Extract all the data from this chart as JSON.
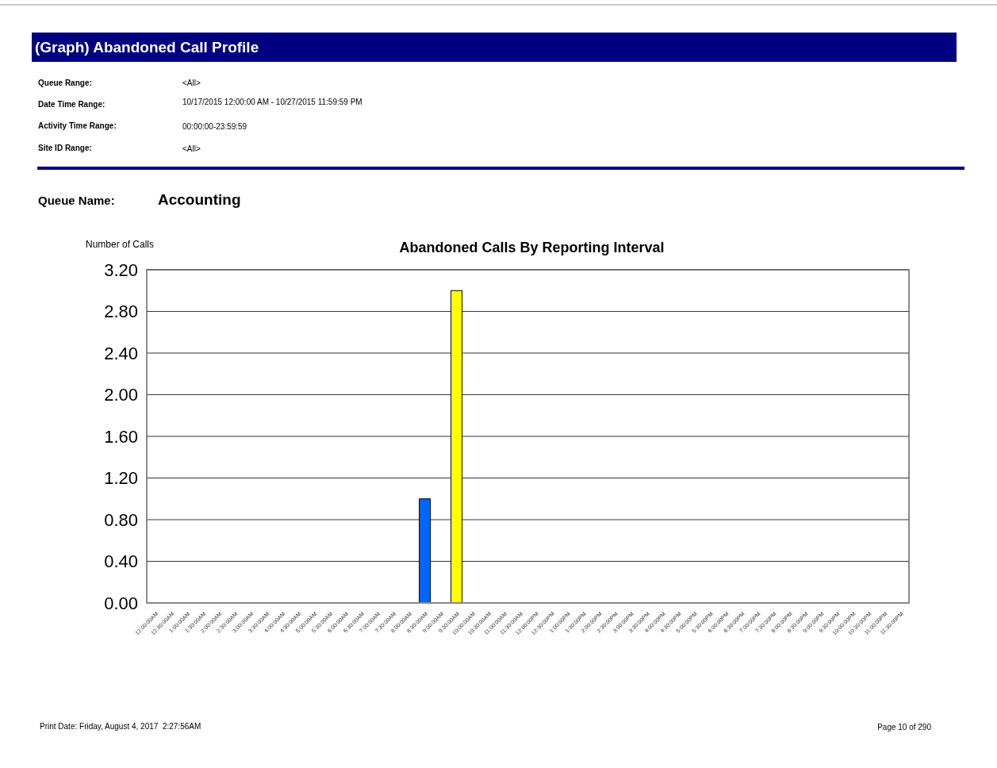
{
  "chart_data": {
    "type": "bar",
    "title": "(Graph) Abandoned Call Profile",
    "subtitle": "Abandoned Calls By Reporting Interval",
    "ylabel": "Number of Calls",
    "annotations": [
      "Queue Range:",
      "<All>",
      "Date Time Range:",
      "10/17/2015 12:00:00 AM - 10/27/2015 11:59:59 PM",
      "Activity Time Range:",
      "00:00:00-23:59:59",
      "Site ID Range:",
      "<All>",
      "Queue Name:",
      "Accounting",
      "Print Date: Friday, August 4, 2017  2:27:56AM",
      "Page 10 of 290"
    ],
    "categories": [
      "12:00:00AM",
      "12:30:00AM",
      "1:00:00AM",
      "1:30:00AM",
      "2:00:00AM",
      "2:30:00AM",
      "3:00:00AM",
      "3:30:00AM",
      "4:00:00AM",
      "4:30:00AM",
      "5:00:00AM",
      "5:30:00AM",
      "6:00:00AM",
      "6:30:00AM",
      "7:00:00AM",
      "7:30:00AM",
      "8:00:00AM",
      "8:30:00AM",
      "9:00:00AM",
      "9:30:00AM",
      "10:00:00AM",
      "10:30:00AM",
      "11:00:00AM",
      "11:30:00AM",
      "12:00:00PM",
      "12:30:00PM",
      "1:00:00PM",
      "1:30:00PM",
      "2:00:00PM",
      "2:30:00PM",
      "3:00:00PM",
      "3:30:00PM",
      "4:00:00PM",
      "4:30:00PM",
      "5:00:00PM",
      "5:30:00PM",
      "6:00:00PM",
      "6:30:00PM",
      "7:00:00PM",
      "7:30:00PM",
      "8:00:00PM",
      "8:30:00PM",
      "9:00:00PM",
      "9:30:00PM",
      "10:00:00PM",
      "10:30:00PM",
      "11:00:00PM",
      "11:30:00PM"
    ],
    "values": [
      0,
      0,
      0,
      0,
      0,
      0,
      0,
      0,
      0,
      0,
      0,
      0,
      0,
      0,
      0,
      0,
      0,
      1,
      0,
      3,
      0,
      0,
      0,
      0,
      0,
      0,
      0,
      0,
      0,
      0,
      0,
      0,
      0,
      0,
      0,
      0,
      0,
      0,
      0,
      0,
      0,
      0,
      0,
      0,
      0,
      0,
      0,
      0
    ],
    "colors": [
      "#0066ff",
      "#0066ff",
      "#0066ff",
      "#0066ff",
      "#0066ff",
      "#0066ff",
      "#0066ff",
      "#0066ff",
      "#0066ff",
      "#0066ff",
      "#0066ff",
      "#0066ff",
      "#0066ff",
      "#0066ff",
      "#0066ff",
      "#0066ff",
      "#0066ff",
      "#0066ff",
      "#0066ff",
      "#ffff00",
      "#0066ff",
      "#0066ff",
      "#0066ff",
      "#0066ff",
      "#0066ff",
      "#0066ff",
      "#0066ff",
      "#0066ff",
      "#0066ff",
      "#0066ff",
      "#0066ff",
      "#0066ff",
      "#0066ff",
      "#0066ff",
      "#0066ff",
      "#0066ff",
      "#0066ff",
      "#0066ff",
      "#0066ff",
      "#0066ff",
      "#0066ff",
      "#0066ff",
      "#0066ff",
      "#0066ff",
      "#0066ff",
      "#0066ff",
      "#0066ff",
      "#0066ff"
    ],
    "ylim": [
      0,
      3.2
    ],
    "yticks": [
      {
        "value": 0,
        "label": "0.00"
      },
      {
        "value": 0.4,
        "label": "0.40"
      },
      {
        "value": 0.8,
        "label": "0.80"
      },
      {
        "value": 1.2,
        "label": "1.20"
      },
      {
        "value": 1.6,
        "label": "1.60"
      },
      {
        "value": 2,
        "label": "2.00"
      },
      {
        "value": 2.4,
        "label": "2.40"
      },
      {
        "value": 2.8,
        "label": "2.80"
      },
      {
        "value": 3.2,
        "label": "3.20"
      }
    ],
    "grid": "y"
  }
}
